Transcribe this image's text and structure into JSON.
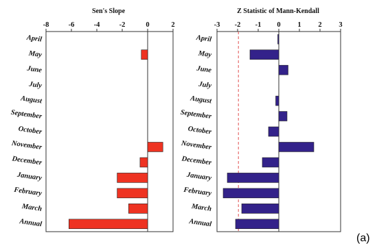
{
  "panel_label": "(a)",
  "chart_data": [
    {
      "type": "bar",
      "orientation": "horizontal",
      "title": "Sen's Slope",
      "categories": [
        "April",
        "May",
        "June",
        "July",
        "August",
        "September",
        "October",
        "November",
        "December",
        "January",
        "February",
        "March",
        "Annual"
      ],
      "values": [
        0.0,
        -0.5,
        0.0,
        0.0,
        0.0,
        0.0,
        0.0,
        1.2,
        -0.6,
        -2.4,
        -2.4,
        -1.5,
        -6.2
      ],
      "xlim": [
        -8,
        2
      ],
      "xticks": [
        -8,
        -6,
        -4,
        -2,
        0,
        2
      ],
      "grid": false,
      "color": "#ee3322"
    },
    {
      "type": "bar",
      "orientation": "horizontal",
      "title": "Z Statistic of Mann-Kendall",
      "categories": [
        "April",
        "May",
        "June",
        "July",
        "August",
        "September",
        "October",
        "November",
        "December",
        "January",
        "February",
        "March",
        "Annual"
      ],
      "values": [
        -0.05,
        -1.4,
        0.45,
        0.0,
        -0.15,
        0.4,
        -0.5,
        1.7,
        -0.8,
        -2.5,
        -2.7,
        -1.8,
        -2.1
      ],
      "xlim": [
        -3,
        3
      ],
      "xticks": [
        -3,
        -2,
        -1,
        0,
        1,
        2,
        3
      ],
      "reference_line": -1.96,
      "grid": false,
      "color": "#33228a"
    }
  ]
}
